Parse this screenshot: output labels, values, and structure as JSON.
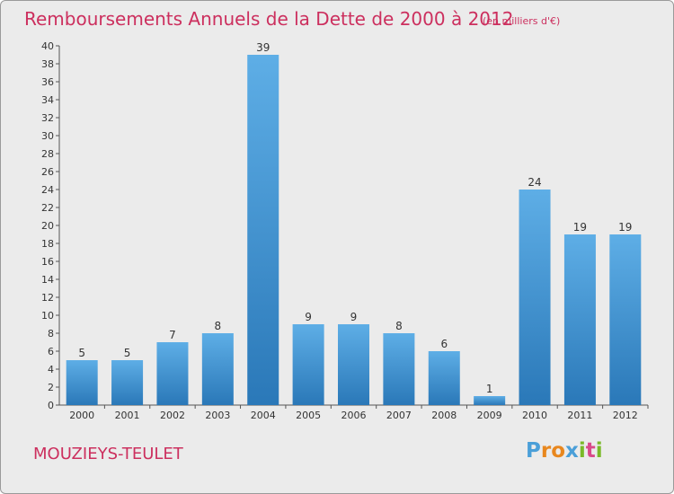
{
  "title": "Remboursements Annuels de la Dette de 2000 à 2012",
  "unit_note": "(en milliers d'€)",
  "commune": "MOUZIEYS-TEULET",
  "logo": {
    "letters": [
      "P",
      "r",
      "o",
      "x",
      "i",
      "t",
      "i"
    ],
    "colors": [
      "#4a9fd8",
      "#e8871e",
      "#e8871e",
      "#4a9fd8",
      "#7ab929",
      "#d94a8a",
      "#7ab929"
    ]
  },
  "colors": {
    "accent": "#cc2f5e",
    "bar_top": "#5eaee6",
    "bar_bottom": "#2a78b8",
    "background": "#ebebeb"
  },
  "chart_data": {
    "type": "bar",
    "title": "Remboursements Annuels de la Dette de 2000 à 2012",
    "categories": [
      "2000",
      "2001",
      "2002",
      "2003",
      "2004",
      "2005",
      "2006",
      "2007",
      "2008",
      "2009",
      "2010",
      "2011",
      "2012"
    ],
    "values": [
      5,
      5,
      7,
      8,
      39,
      9,
      9,
      8,
      6,
      1,
      24,
      19,
      19
    ],
    "ylim": [
      0,
      40
    ],
    "yticks": [
      0,
      2,
      4,
      6,
      8,
      10,
      12,
      14,
      16,
      18,
      20,
      22,
      24,
      26,
      28,
      30,
      32,
      34,
      36,
      38,
      40
    ],
    "grid": false,
    "legend": "none"
  }
}
